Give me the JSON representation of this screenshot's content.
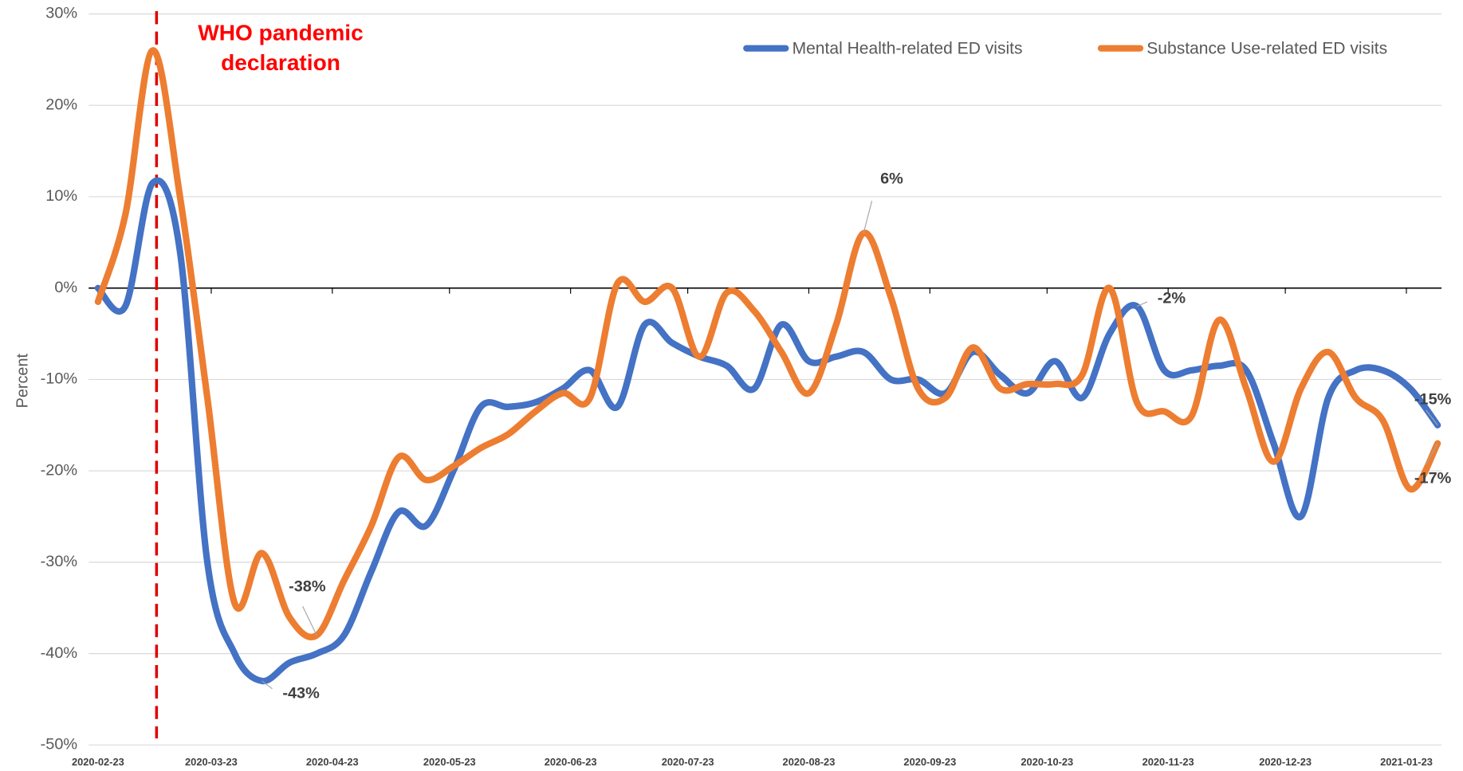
{
  "chart_data": {
    "type": "line",
    "y_label": "Percent",
    "legend": "upper right",
    "annotation": {
      "lines": [
        "WHO pandemic",
        "declaration"
      ],
      "x": "2020-03-09",
      "color": "#e00000"
    },
    "x": [
      "2020-02-23",
      "2020-03-01",
      "2020-03-08",
      "2020-03-15",
      "2020-03-22",
      "2020-03-29",
      "2020-04-05",
      "2020-04-12",
      "2020-04-19",
      "2020-04-26",
      "2020-05-03",
      "2020-05-10",
      "2020-05-17",
      "2020-05-24",
      "2020-05-31",
      "2020-06-07",
      "2020-06-14",
      "2020-06-21",
      "2020-06-28",
      "2020-07-05",
      "2020-07-12",
      "2020-07-19",
      "2020-07-26",
      "2020-08-02",
      "2020-08-09",
      "2020-08-16",
      "2020-08-23",
      "2020-08-30",
      "2020-09-06",
      "2020-09-13",
      "2020-09-20",
      "2020-09-27",
      "2020-10-04",
      "2020-10-11",
      "2020-10-18",
      "2020-10-25",
      "2020-11-01",
      "2020-11-08",
      "2020-11-15",
      "2020-11-22",
      "2020-11-29",
      "2020-12-06",
      "2020-12-13",
      "2020-12-20",
      "2020-12-27",
      "2021-01-03",
      "2021-01-10",
      "2021-01-17",
      "2021-01-24",
      "2021-01-31"
    ],
    "xlim": [
      "2020-02-23",
      "2021-02-01"
    ],
    "xticks": [
      "2020-02-23",
      "2020-03-23",
      "2020-04-23",
      "2020-05-23",
      "2020-06-23",
      "2020-07-23",
      "2020-08-23",
      "2020-09-23",
      "2020-10-23",
      "2020-11-23",
      "2020-12-23",
      "2021-01-23"
    ],
    "ylim": [
      -50,
      30
    ],
    "yticks": [
      {
        "value": 30,
        "label": "30%"
      },
      {
        "value": 20,
        "label": "20%"
      },
      {
        "value": 10,
        "label": "10%"
      },
      {
        "value": 0,
        "label": "0%"
      },
      {
        "value": -10,
        "label": "-10%"
      },
      {
        "value": -20,
        "label": "-20%"
      },
      {
        "value": -30,
        "label": "-30%"
      },
      {
        "value": -40,
        "label": "-40%"
      },
      {
        "value": -50,
        "label": "-50%"
      }
    ],
    "grid": true,
    "series": [
      {
        "name": "Mental Health-related ED visits",
        "color": "#4472c4",
        "values": [
          0,
          -2,
          11.5,
          4,
          -30,
          -40,
          -43,
          -41,
          -40,
          -38,
          -31,
          -24.5,
          -26,
          -20,
          -13,
          -13,
          -12.5,
          -11,
          -9,
          -13,
          -4,
          -6,
          -7.5,
          -8.5,
          -11,
          -4,
          -8,
          -7.5,
          -7,
          -10,
          -10,
          -11.5,
          -7,
          -9.5,
          -11.5,
          -8,
          -12,
          -5,
          -2,
          -9,
          -9,
          -8.5,
          -9,
          -17,
          -25,
          -12,
          -9,
          -9,
          -11,
          -15
        ],
        "value_labels": [
          null,
          null,
          null,
          null,
          null,
          null,
          "-43%",
          null,
          null,
          null,
          null,
          null,
          null,
          null,
          null,
          null,
          null,
          null,
          null,
          null,
          null,
          null,
          null,
          null,
          null,
          null,
          null,
          null,
          null,
          null,
          null,
          null,
          null,
          null,
          null,
          null,
          null,
          null,
          "-2%",
          null,
          null,
          null,
          null,
          null,
          null,
          null,
          null,
          null,
          null,
          "-15%"
        ]
      },
      {
        "name": "Substance Use-related ED visits",
        "color": "#ed7d31",
        "values": [
          -1.5,
          8,
          26,
          10,
          -12,
          -34.5,
          -29,
          -36,
          -38,
          -32,
          -26,
          -18.5,
          -21,
          -19.5,
          -17.5,
          -16,
          -13.5,
          -11.5,
          -12,
          0.5,
          -1.5,
          0,
          -7.5,
          -0.5,
          -2.5,
          -7,
          -11.5,
          -4,
          6,
          -1,
          -11,
          -12,
          -6.5,
          -11,
          -10.5,
          -10.5,
          -9.5,
          0,
          -12.5,
          -13.5,
          -14,
          -3.5,
          -11,
          -19,
          -11,
          -7,
          -12,
          -14.5,
          -22,
          -17
        ],
        "value_labels": [
          null,
          null,
          null,
          null,
          null,
          null,
          null,
          null,
          "-38%",
          null,
          null,
          null,
          null,
          null,
          null,
          null,
          null,
          null,
          null,
          null,
          null,
          null,
          null,
          null,
          null,
          null,
          null,
          null,
          "6%",
          null,
          null,
          null,
          null,
          null,
          null,
          null,
          null,
          null,
          null,
          null,
          null,
          null,
          null,
          null,
          null,
          null,
          null,
          null,
          null,
          "-17%"
        ]
      }
    ]
  }
}
